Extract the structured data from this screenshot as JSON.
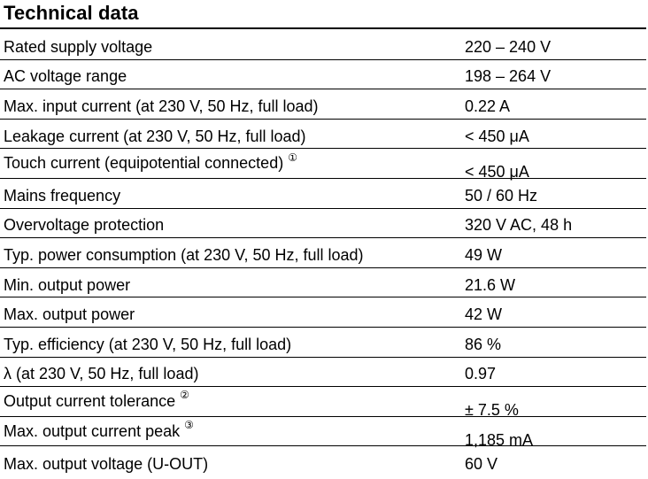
{
  "heading": "Technical data",
  "rows": [
    {
      "label": "Rated supply voltage",
      "note": "",
      "value": "220 – 240 V"
    },
    {
      "label": "AC voltage range",
      "note": "",
      "value": "198 – 264 V"
    },
    {
      "label": "Max. input current (at 230 V, 50 Hz, full load)",
      "note": "",
      "value": "0.22 A"
    },
    {
      "label": "Leakage current (at 230 V, 50 Hz, full load)",
      "note": "",
      "value": "< 450 μA"
    },
    {
      "label": "Touch current (equipotential connected)",
      "note": "①",
      "value": "< 450 μA"
    },
    {
      "label": "Mains frequency",
      "note": "",
      "value": "50 / 60 Hz"
    },
    {
      "label": "Overvoltage protection",
      "note": "",
      "value": "320 V AC, 48 h"
    },
    {
      "label": "Typ. power consumption (at 230 V, 50 Hz, full load)",
      "note": "",
      "value": "49 W"
    },
    {
      "label": "Min. output power",
      "note": "",
      "value": "21.6 W"
    },
    {
      "label": "Max. output power",
      "note": "",
      "value": "42 W"
    },
    {
      "label": "Typ. efficiency (at 230 V, 50 Hz, full load)",
      "note": "",
      "value": "86 %"
    },
    {
      "label": "λ (at 230 V, 50 Hz, full load)",
      "note": "",
      "value": "0.97"
    },
    {
      "label": "Output current tolerance",
      "note": "②",
      "value": "± 7.5 %"
    },
    {
      "label": "Max. output current peak",
      "note": "③",
      "value": "1,185 mA"
    },
    {
      "label": "Max. output voltage (U-OUT)",
      "note": "",
      "value": "60 V"
    }
  ]
}
